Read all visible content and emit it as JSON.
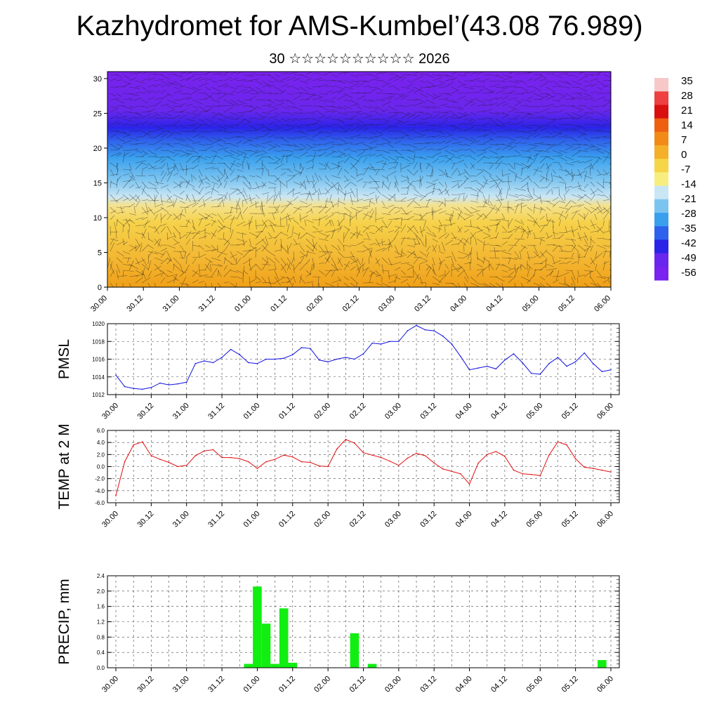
{
  "header": {
    "title": "Kazhydromet for AMS-Kumbel’(43.08 76.989)",
    "subtitle": "30 ☆☆☆☆☆☆☆☆☆☆ 2026"
  },
  "chart_data": [
    {
      "type": "heatmap",
      "name": "temperature-wind cross-section",
      "x_ticks": [
        "30.00",
        "30.12",
        "31.00",
        "31.12",
        "01.00",
        "01.12",
        "02.00",
        "02.12",
        "03.00",
        "03.12",
        "04.00",
        "04.12",
        "05.00",
        "05.12",
        "06.00"
      ],
      "y_ticks": [
        "0",
        "5",
        "10",
        "15",
        "20",
        "25",
        "30"
      ],
      "ylim": [
        0,
        31
      ],
      "colorbar_labels": [
        "35",
        "28",
        "21",
        "14",
        "7",
        "0",
        "-7",
        "-14",
        "-21",
        "-28",
        "-35",
        "-42",
        "-49",
        "-56"
      ],
      "colors": {
        "cold": "#7a22ee",
        "cool": "#3aa0ee",
        "light": "#c9e6f5",
        "warm": "#f6dd50",
        "hot": "#f0a018"
      }
    },
    {
      "type": "line",
      "ylabel": "PMSL",
      "ylim": [
        1012,
        1020
      ],
      "y_ticks": [
        "1012",
        "1014",
        "1016",
        "1018",
        "1020"
      ],
      "x_ticks": [
        "30.00",
        "30.12",
        "31.00",
        "31.12",
        "01.00",
        "01.12",
        "02.00",
        "02.12",
        "03.00",
        "03.12",
        "04.00",
        "04.12",
        "05.00",
        "05.12",
        "06.00"
      ],
      "color": "#1010e0",
      "values": [
        1014.2,
        1012.9,
        1012.7,
        1012.6,
        1012.8,
        1013.3,
        1013.1,
        1013.2,
        1013.4,
        1015.5,
        1015.8,
        1015.6,
        1016.2,
        1017.1,
        1016.5,
        1015.6,
        1015.5,
        1016.0,
        1016.0,
        1016.1,
        1016.5,
        1017.3,
        1017.2,
        1015.9,
        1015.7,
        1016.0,
        1016.2,
        1016.0,
        1016.6,
        1017.8,
        1017.7,
        1018.0,
        1018.0,
        1019.2,
        1019.8,
        1019.3,
        1019.2,
        1018.6,
        1017.7,
        1016.3,
        1014.8,
        1015.0,
        1015.2,
        1014.9,
        1015.9,
        1016.6,
        1015.6,
        1014.4,
        1014.3,
        1015.5,
        1016.2,
        1015.2,
        1015.7,
        1016.7,
        1015.5,
        1014.6,
        1014.8
      ]
    },
    {
      "type": "line",
      "ylabel": "TEMP at 2 M",
      "ylim": [
        -6,
        6
      ],
      "y_ticks": [
        "-6.0",
        "-4.0",
        "-2.0",
        "0.0",
        "2.0",
        "4.0",
        "6.0"
      ],
      "x_ticks": [
        "30.00",
        "30.12",
        "31.00",
        "31.12",
        "01.00",
        "01.12",
        "02.00",
        "02.12",
        "03.00",
        "03.12",
        "04.00",
        "04.12",
        "05.00",
        "05.12",
        "06.00"
      ],
      "color": "#e01010",
      "values": [
        -4.8,
        0.8,
        3.6,
        4.1,
        1.8,
        1.2,
        0.7,
        0.0,
        0.2,
        1.8,
        2.6,
        2.8,
        1.5,
        1.5,
        1.3,
        0.8,
        -0.3,
        0.8,
        1.2,
        1.9,
        1.6,
        0.8,
        0.7,
        0.1,
        0.0,
        2.9,
        4.5,
        3.9,
        2.3,
        1.9,
        1.5,
        0.9,
        0.2,
        1.4,
        2.2,
        1.8,
        0.6,
        -0.4,
        -0.8,
        -1.2,
        -2.9,
        0.6,
        2.0,
        2.5,
        1.7,
        -0.6,
        -1.2,
        -1.3,
        -1.5,
        1.9,
        4.1,
        3.6,
        1.3,
        -0.1,
        -0.3,
        -0.6,
        -0.9
      ]
    },
    {
      "type": "bar",
      "ylabel": "PRECIP, mm",
      "ylim": [
        0,
        2.4
      ],
      "y_ticks": [
        "0.0",
        "0.4",
        "0.8",
        "1.2",
        "1.6",
        "2.0",
        "2.4"
      ],
      "x_ticks": [
        "30.00",
        "30.12",
        "31.00",
        "31.12",
        "01.00",
        "01.12",
        "02.00",
        "02.12",
        "03.00",
        "03.12",
        "04.00",
        "04.12",
        "05.00",
        "05.12",
        "06.00"
      ],
      "color": "#11ee11",
      "values": [
        0,
        0,
        0,
        0,
        0,
        0,
        0,
        0,
        0,
        0,
        0,
        0,
        0,
        0,
        0,
        0.1,
        2.12,
        1.15,
        0.1,
        1.55,
        0.13,
        0,
        0,
        0,
        0,
        0,
        0,
        0.9,
        0,
        0.1,
        0,
        0,
        0,
        0,
        0,
        0,
        0,
        0,
        0,
        0,
        0,
        0,
        0,
        0,
        0,
        0,
        0,
        0,
        0,
        0,
        0,
        0,
        0,
        0,
        0,
        0.2,
        0
      ]
    }
  ]
}
